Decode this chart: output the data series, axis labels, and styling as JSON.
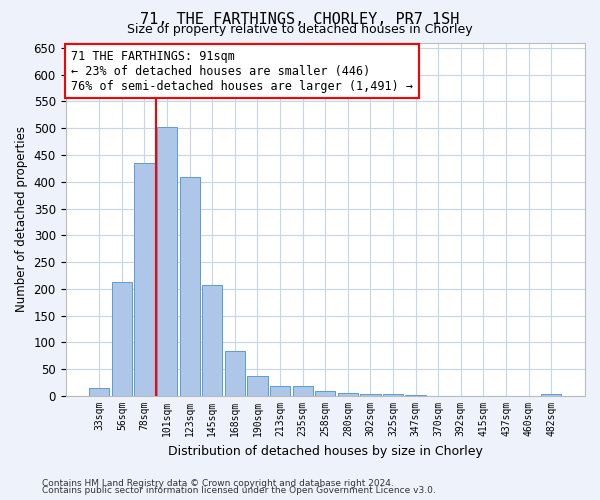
{
  "title": "71, THE FARTHINGS, CHORLEY, PR7 1SH",
  "subtitle": "Size of property relative to detached houses in Chorley",
  "xlabel": "Distribution of detached houses by size in Chorley",
  "ylabel": "Number of detached properties",
  "categories": [
    "33sqm",
    "56sqm",
    "78sqm",
    "101sqm",
    "123sqm",
    "145sqm",
    "168sqm",
    "190sqm",
    "213sqm",
    "235sqm",
    "258sqm",
    "280sqm",
    "302sqm",
    "325sqm",
    "347sqm",
    "370sqm",
    "392sqm",
    "415sqm",
    "437sqm",
    "460sqm",
    "482sqm"
  ],
  "values": [
    15,
    213,
    435,
    502,
    408,
    207,
    85,
    38,
    18,
    18,
    10,
    5,
    4,
    3,
    2,
    1,
    1,
    1,
    1,
    1,
    4
  ],
  "bar_color": "#aec6e8",
  "bar_edge_color": "#5b9bd5",
  "vline_color": "red",
  "annotation_text": "71 THE FARTHINGS: 91sqm\n← 23% of detached houses are smaller (446)\n76% of semi-detached houses are larger (1,491) →",
  "annotation_box_color": "white",
  "annotation_box_edge_color": "red",
  "ylim": [
    0,
    660
  ],
  "yticks": [
    0,
    50,
    100,
    150,
    200,
    250,
    300,
    350,
    400,
    450,
    500,
    550,
    600,
    650
  ],
  "footer1": "Contains HM Land Registry data © Crown copyright and database right 2024.",
  "footer2": "Contains public sector information licensed under the Open Government Licence v3.0.",
  "bg_color": "#eef3fb",
  "plot_bg_color": "white",
  "grid_color": "#c8d4e8",
  "vline_idx": 2.5
}
